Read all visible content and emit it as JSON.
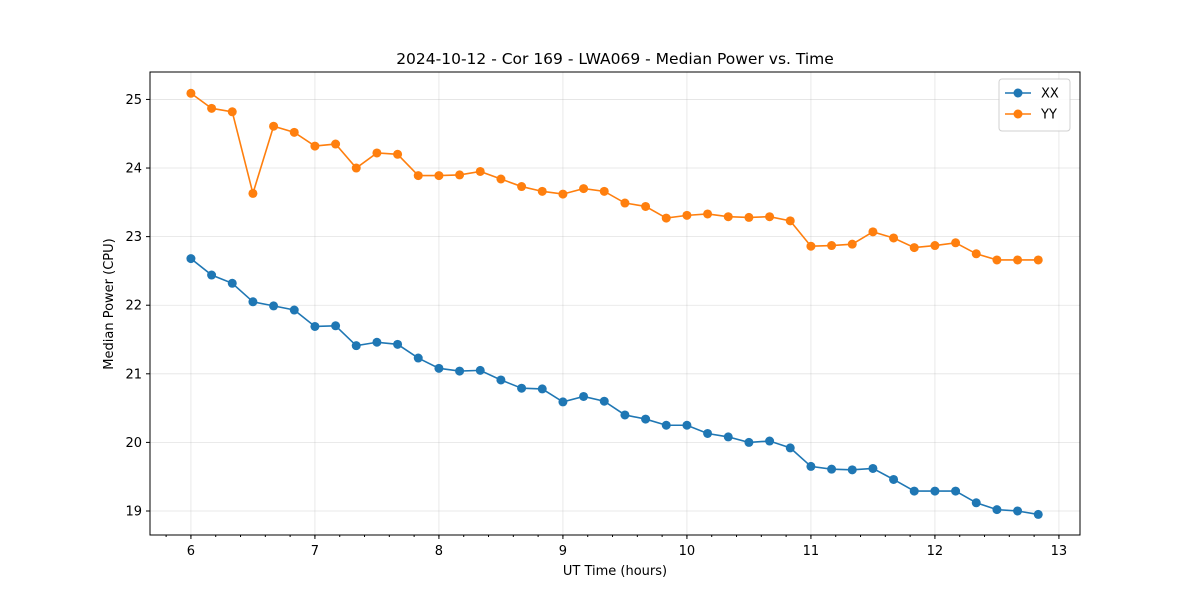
{
  "chart_data": {
    "type": "line",
    "title": "2024-10-12 - Cor 169 - LWA069 - Median Power vs. Time",
    "xlabel": "UT Time (hours)",
    "ylabel": "Median Power (CPU)",
    "xlim": [
      5.67,
      13.17
    ],
    "ylim": [
      18.65,
      25.4
    ],
    "xticks": [
      6,
      7,
      8,
      9,
      10,
      11,
      12,
      13
    ],
    "xtick_labels": [
      "6",
      "7",
      "8",
      "9",
      "10",
      "11",
      "12",
      "13"
    ],
    "xminor_step": 0.2,
    "yticks": [
      19,
      20,
      21,
      22,
      23,
      24,
      25
    ],
    "ytick_labels": [
      "19",
      "20",
      "21",
      "22",
      "23",
      "24",
      "25"
    ],
    "grid": true,
    "legend_position": "top-right",
    "x": [
      6.0,
      6.1667,
      6.3333,
      6.5,
      6.6667,
      6.8333,
      7.0,
      7.1667,
      7.3333,
      7.5,
      7.6667,
      7.8333,
      8.0,
      8.1667,
      8.3333,
      8.5,
      8.6667,
      8.8333,
      9.0,
      9.1667,
      9.3333,
      9.5,
      9.6667,
      9.8333,
      10.0,
      10.1667,
      10.3333,
      10.5,
      10.6667,
      10.8333,
      11.0,
      11.1667,
      11.3333,
      11.5,
      11.6667,
      11.8333,
      12.0,
      12.1667,
      12.3333,
      12.5,
      12.6667,
      12.8333
    ],
    "series": [
      {
        "name": "XX",
        "color": "#1f77b4",
        "values": [
          22.68,
          22.44,
          22.32,
          22.05,
          21.99,
          21.93,
          21.69,
          21.7,
          21.41,
          21.46,
          21.43,
          21.23,
          21.08,
          21.04,
          21.05,
          20.91,
          20.79,
          20.78,
          20.59,
          20.67,
          20.6,
          20.4,
          20.34,
          20.25,
          20.25,
          20.13,
          20.08,
          20.0,
          20.02,
          19.92,
          19.65,
          19.61,
          19.6,
          19.62,
          19.46,
          19.29,
          19.29,
          19.29,
          19.12,
          19.02,
          19.0,
          18.95
        ]
      },
      {
        "name": "YY",
        "color": "#ff7f0e",
        "values": [
          25.09,
          24.87,
          24.82,
          23.63,
          24.61,
          24.52,
          24.32,
          24.35,
          24.0,
          24.22,
          24.2,
          23.89,
          23.89,
          23.9,
          23.95,
          23.84,
          23.73,
          23.66,
          23.62,
          23.7,
          23.66,
          23.49,
          23.44,
          23.27,
          23.31,
          23.33,
          23.29,
          23.28,
          23.29,
          23.23,
          22.86,
          22.87,
          22.89,
          23.07,
          22.98,
          22.84,
          22.87,
          22.91,
          22.75,
          22.66,
          22.66,
          22.66
        ]
      }
    ]
  }
}
